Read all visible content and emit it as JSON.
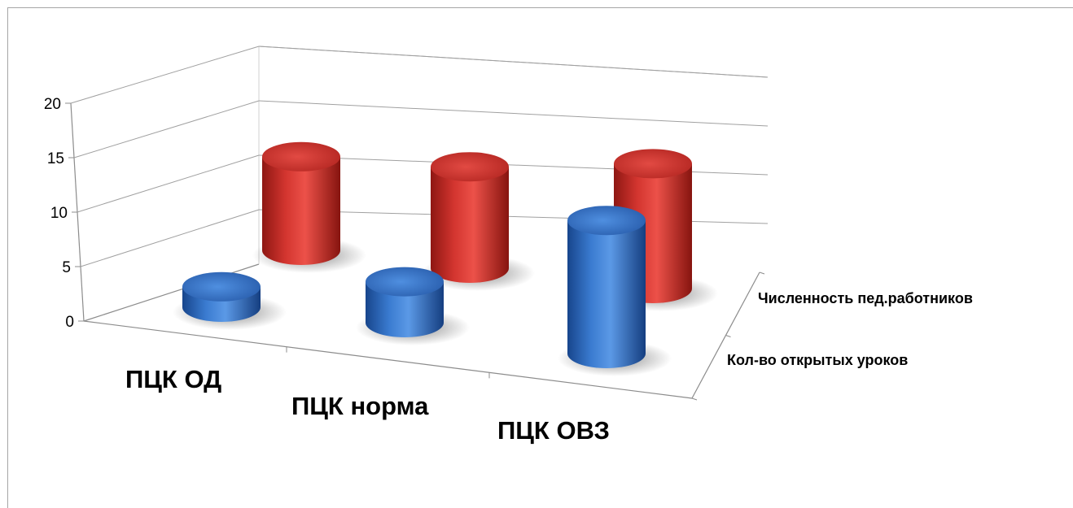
{
  "chart_data": {
    "type": "bar",
    "style": "3d-cylinder",
    "title": "",
    "xlabel": "",
    "ylabel": "",
    "ylim": [
      0,
      20
    ],
    "yticks": [
      "0",
      "5",
      "10",
      "15",
      "20"
    ],
    "categories": [
      "ПЦК ОД",
      "ПЦК норма",
      "ПЦК ОВЗ"
    ],
    "series": [
      {
        "name": "Кол-во открытых уроков",
        "values": [
          2,
          4,
          13
        ],
        "color": "#3b76c6"
      },
      {
        "name": "Численность пед.работников",
        "values": [
          12,
          13,
          16
        ],
        "color": "#c9302c"
      }
    ],
    "grid": true,
    "legend": "none"
  }
}
